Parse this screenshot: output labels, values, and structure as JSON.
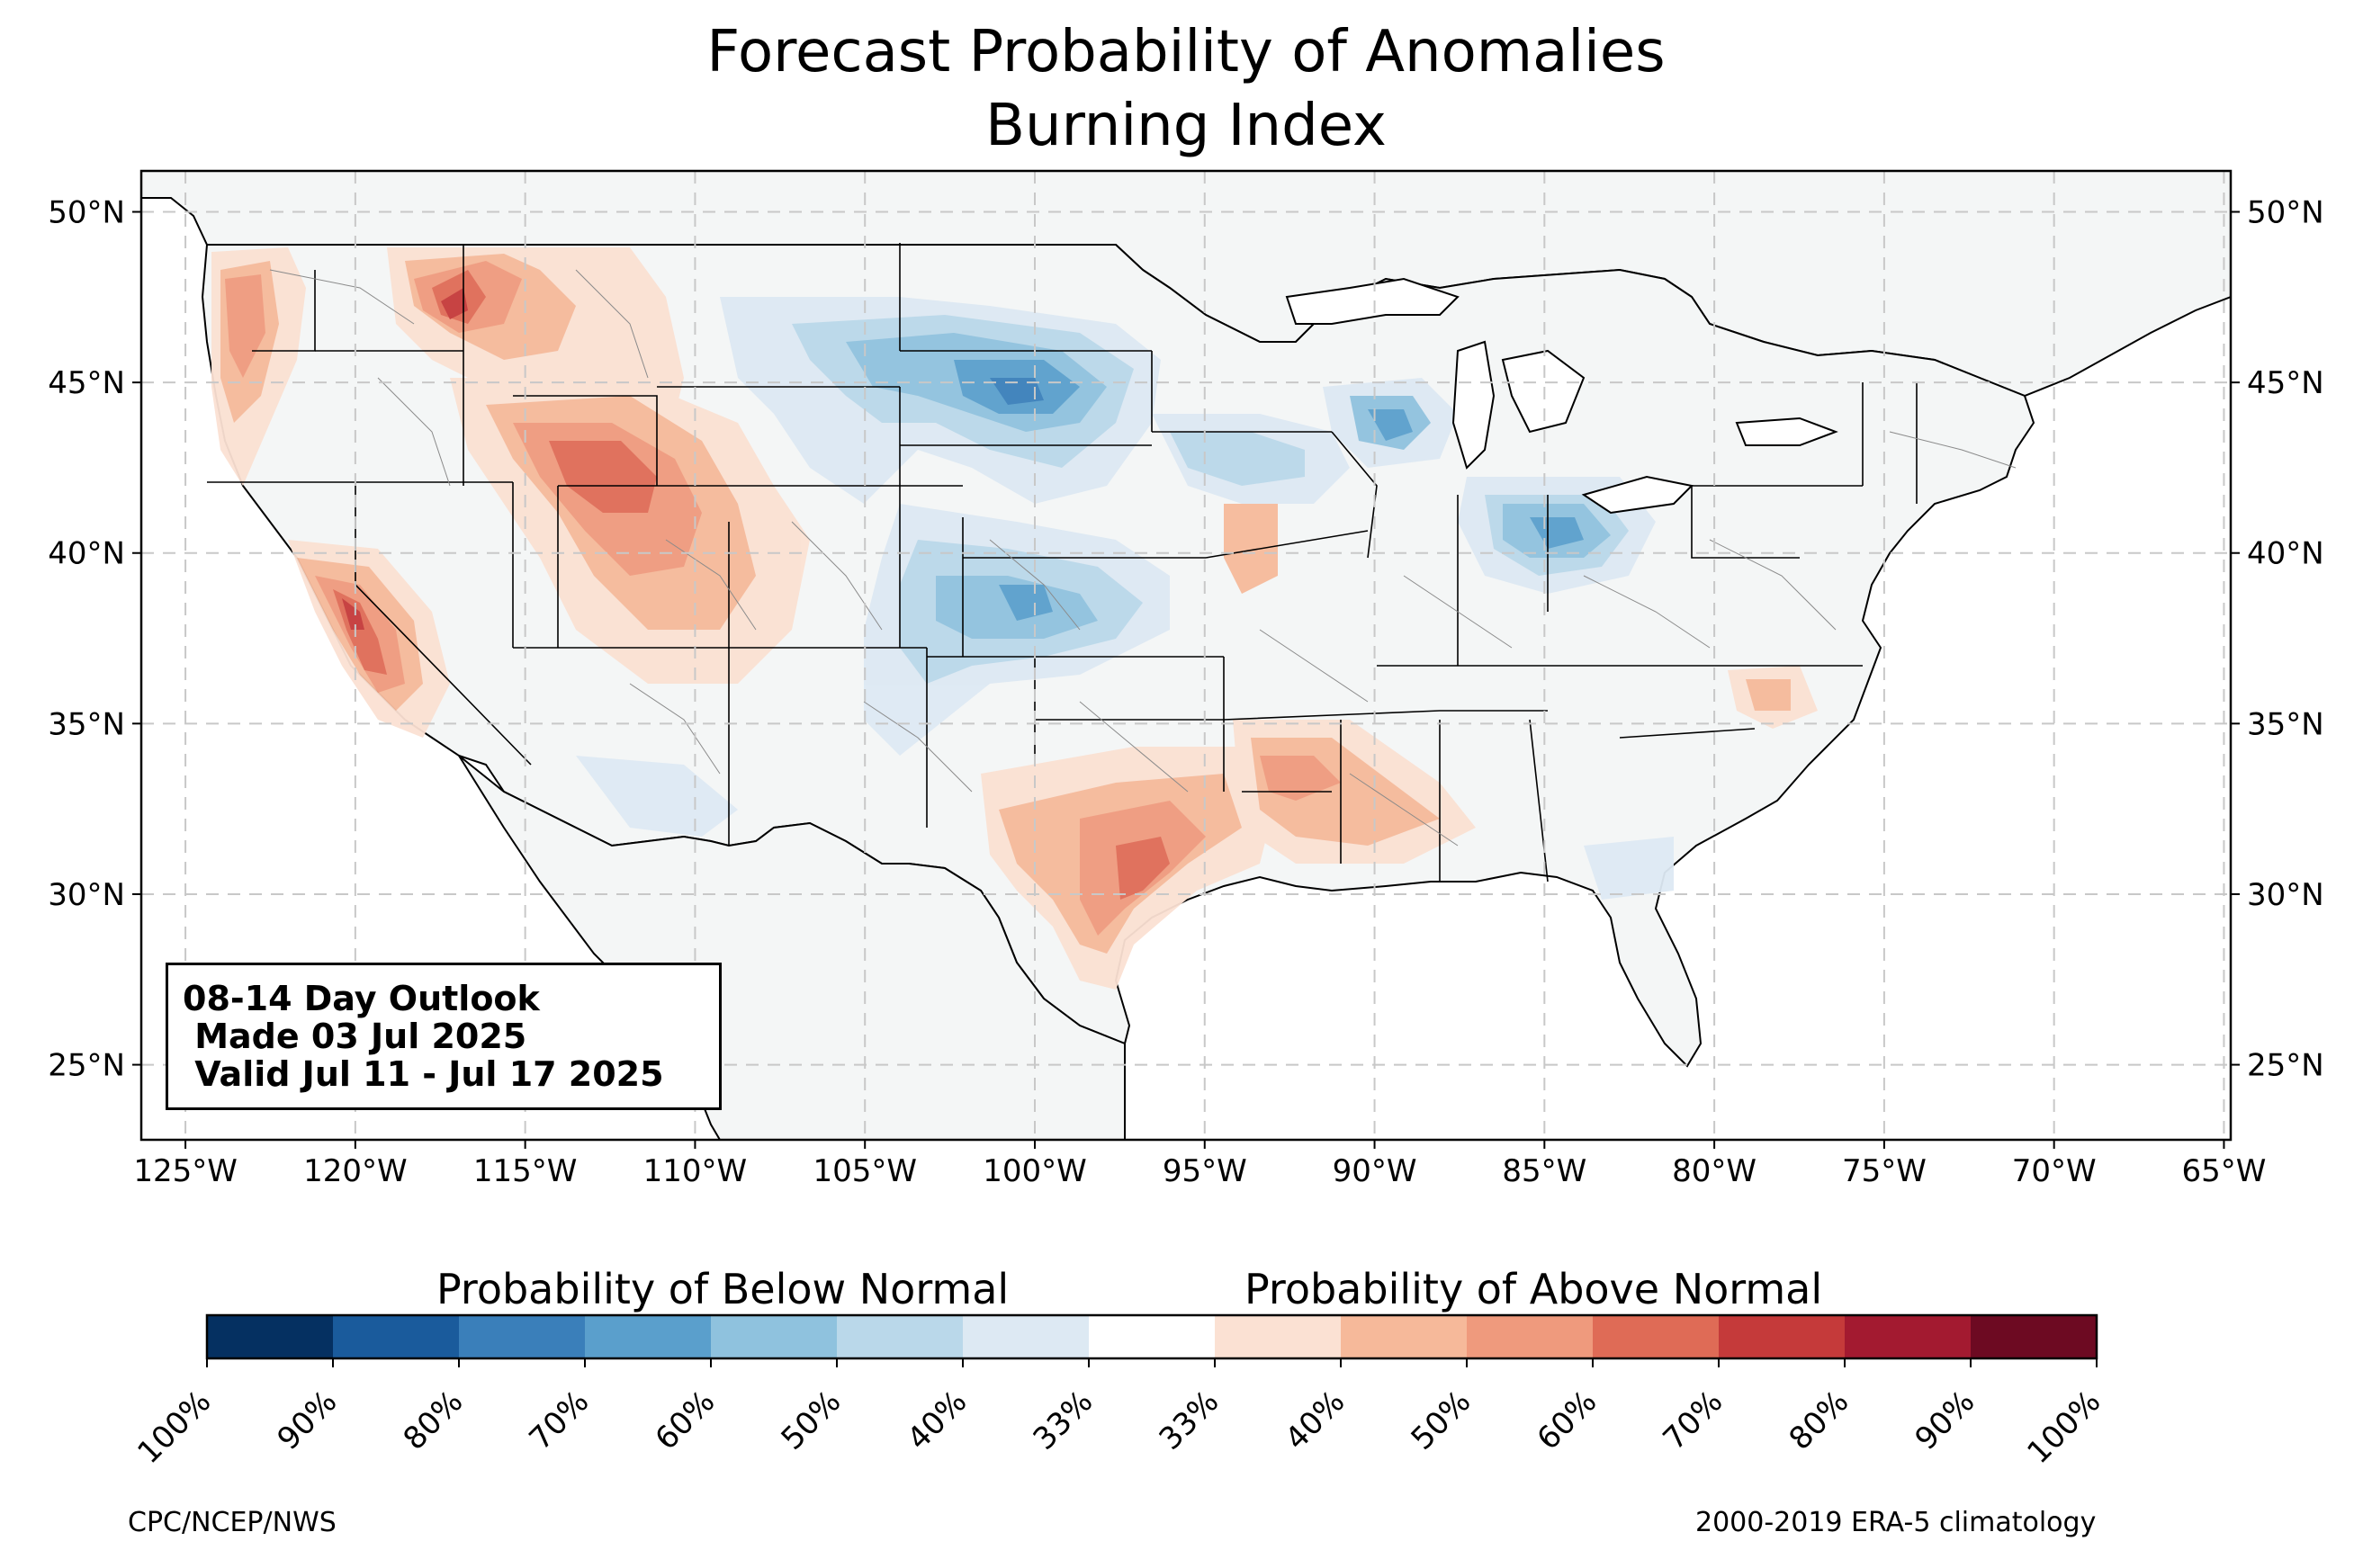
{
  "title": {
    "line1": "Forecast Probability of Anomalies",
    "line2": "Burning Index"
  },
  "map": {
    "lat_labels": [
      "50°N",
      "45°N",
      "40°N",
      "35°N",
      "30°N",
      "25°N"
    ],
    "lon_labels": [
      "125°W",
      "120°W",
      "115°W",
      "110°W",
      "105°W",
      "100°W",
      "95°W",
      "90°W",
      "85°W",
      "80°W",
      "75°W",
      "70°W",
      "65°W"
    ],
    "lat_values": [
      50,
      45,
      40,
      35,
      30,
      25
    ],
    "lon_values": [
      -125,
      -120,
      -115,
      -110,
      -105,
      -100,
      -95,
      -90,
      -85,
      -80,
      -75,
      -70,
      -65
    ],
    "extent": {
      "lon_min": -126.3,
      "lon_max": -64.8,
      "lat_min": 22.8,
      "lat_max": 51.2
    },
    "land_color": "#f4f6f6",
    "ocean_color": "#ffffff",
    "above_normal_regions": [
      {
        "area": "Pacific Northwest / Oregon coast",
        "category": "50%",
        "lon": -123.0,
        "lat": 45.0
      },
      {
        "area": "Northern Idaho",
        "category": "80%",
        "lon": -117.0,
        "lat": 47.0
      },
      {
        "area": "Western Wyoming / Utah",
        "category": "60%",
        "lon": -111.0,
        "lat": 42.0
      },
      {
        "area": "Colorado",
        "category": "50%",
        "lon": -106.5,
        "lat": 39.0
      },
      {
        "area": "Nevada / California",
        "category": "80%",
        "lon": -119.5,
        "lat": 38.0
      },
      {
        "area": "Central Texas",
        "category": "70%",
        "lon": -97.0,
        "lat": 30.5
      },
      {
        "area": "Louisiana / Mississippi",
        "category": "50%",
        "lon": -90.0,
        "lat": 32.0
      }
    ],
    "below_normal_regions": [
      {
        "area": "South Dakota",
        "category": "70%",
        "lon": -100.0,
        "lat": 44.5
      },
      {
        "area": "Kansas",
        "category": "60%",
        "lon": -99.0,
        "lat": 38.5
      },
      {
        "area": "Indiana / Ohio",
        "category": "60%",
        "lon": -84.0,
        "lat": 40.5
      },
      {
        "area": "Wisconsin",
        "category": "50%",
        "lon": -90.0,
        "lat": 44.0
      },
      {
        "area": "New Mexico / Texas panhandle",
        "category": "50%",
        "lon": -102.0,
        "lat": 36.0
      }
    ]
  },
  "infobox": {
    "line1": "08-14 Day Outlook",
    "line2": " Made 03 Jul 2025",
    "line3": " Valid Jul 11 - Jul 17 2025"
  },
  "colorbar": {
    "below_label": "Probability of Below Normal",
    "above_label": "Probability of Above Normal",
    "tick_labels": [
      "100%",
      "90%",
      "80%",
      "70%",
      "60%",
      "50%",
      "40%",
      "33%",
      "33%",
      "40%",
      "50%",
      "60%",
      "70%",
      "80%",
      "90%",
      "100%"
    ],
    "colors": [
      "#053061",
      "#1a5b9c",
      "#3a7fba",
      "#5a9fcc",
      "#8fc2de",
      "#bad8ea",
      "#dde9f3",
      "#ffffff",
      "#fbe1d3",
      "#f6b99a",
      "#ef9a7d",
      "#df6b56",
      "#c53a3a",
      "#a31a30",
      "#6d0a22"
    ]
  },
  "footer": {
    "left": "CPC/NCEP/NWS",
    "right": "2000-2019 ERA-5 climatology"
  }
}
